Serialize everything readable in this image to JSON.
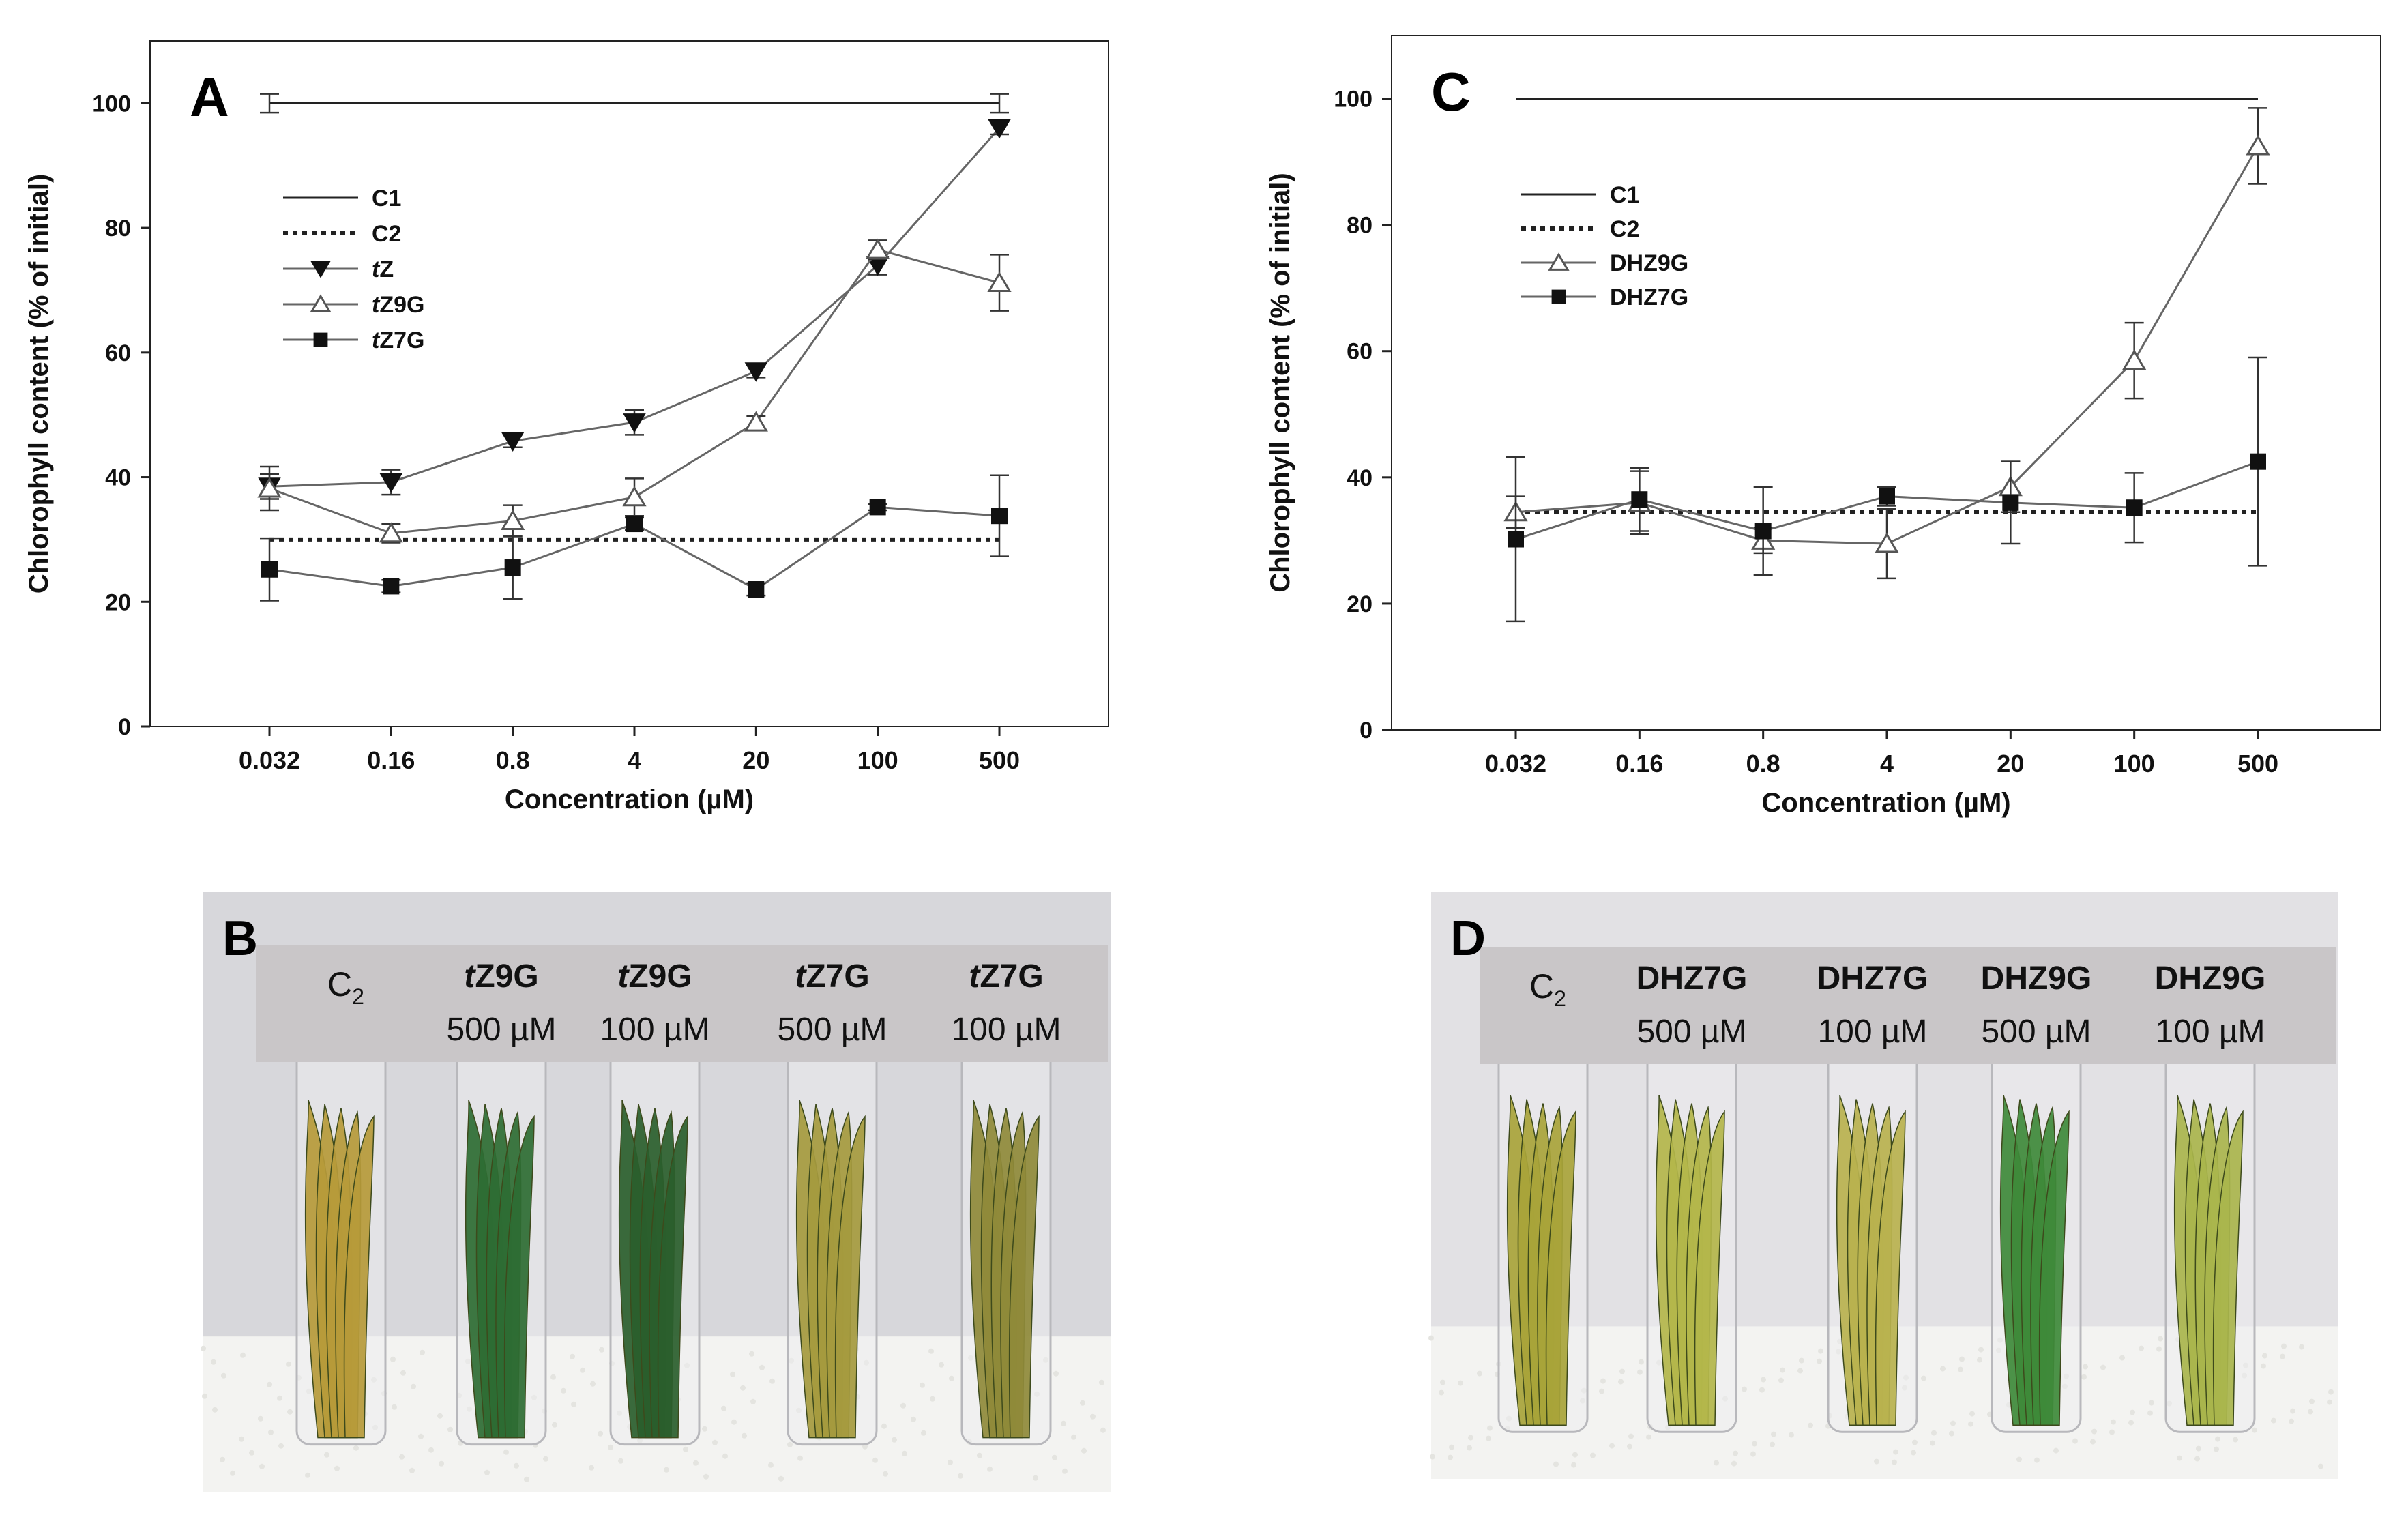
{
  "chart_data": [
    {
      "panel": "A",
      "type": "line",
      "xlabel": "Concentration (µM)",
      "ylabel": "Chlorophyll content (% of initial)",
      "categories": [
        "0.032",
        "0.16",
        "0.8",
        "4",
        "20",
        "100",
        "500"
      ],
      "ylim": [
        0,
        110
      ],
      "yticks": [
        0,
        20,
        40,
        60,
        80,
        100
      ],
      "legend_position": "upper-left",
      "series": [
        {
          "name": "C1",
          "style": "solid-line",
          "values": [
            100,
            null,
            null,
            null,
            null,
            null,
            100
          ],
          "errors": [
            1.5,
            null,
            null,
            null,
            null,
            null,
            1.5
          ]
        },
        {
          "name": "C2",
          "style": "dotted-line",
          "values": [
            30,
            null,
            null,
            null,
            null,
            null,
            30
          ],
          "errors": [
            null,
            null,
            null,
            null,
            null,
            null,
            null
          ]
        },
        {
          "name": "tZ",
          "italic_prefix": "t",
          "rest": "Z",
          "marker": "filled-triangle-down",
          "values": [
            38.5,
            39.2,
            45.8,
            48.8,
            57,
            74,
            96
          ],
          "errors": [
            2,
            2,
            1,
            2,
            1,
            1.5,
            1
          ]
        },
        {
          "name": "tZ9G",
          "italic_prefix": "t",
          "rest": "Z9G",
          "marker": "open-triangle-up",
          "values": [
            38.2,
            31,
            33,
            36.8,
            48.8,
            76.5,
            71.2
          ],
          "errors": [
            3.5,
            1.5,
            2.5,
            3,
            1,
            1.5,
            4.5
          ]
        },
        {
          "name": "tZ7G",
          "italic_prefix": "t",
          "rest": "Z7G",
          "marker": "filled-square",
          "values": [
            25.2,
            22.5,
            25.5,
            32.5,
            22,
            35.2,
            33.8
          ],
          "errors": [
            5,
            1,
            5,
            1,
            1,
            0.5,
            6.5
          ]
        }
      ]
    },
    {
      "panel": "C",
      "type": "line",
      "xlabel": "Concentration (µM)",
      "ylabel": "Chlorophyll content (% of initial)",
      "categories": [
        "0.032",
        "0.16",
        "0.8",
        "4",
        "20",
        "100",
        "500"
      ],
      "ylim": [
        0,
        110
      ],
      "yticks": [
        0,
        20,
        40,
        60,
        80,
        100
      ],
      "legend_position": "upper-left",
      "series": [
        {
          "name": "C1",
          "style": "solid-line",
          "values": [
            100,
            null,
            null,
            null,
            null,
            null,
            100
          ],
          "errors": [
            null,
            null,
            null,
            null,
            null,
            null,
            null
          ]
        },
        {
          "name": "C2",
          "style": "dotted-line",
          "values": [
            34.5,
            null,
            null,
            null,
            null,
            null,
            34.5
          ],
          "errors": [
            null,
            null,
            null,
            null,
            null,
            null,
            null
          ]
        },
        {
          "name": "DHZ9G",
          "italic_prefix": "",
          "rest": "DHZ9G",
          "marker": "open-triangle-up",
          "values": [
            34.5,
            36,
            30,
            29.5,
            38.5,
            58.5,
            92.5
          ],
          "errors": [
            2.5,
            5,
            2,
            5.5,
            4,
            6,
            6
          ]
        },
        {
          "name": "DHZ7G",
          "italic_prefix": "",
          "rest": "DHZ7G",
          "marker": "filled-square",
          "values": [
            30.2,
            36.5,
            31.5,
            37,
            36,
            35.2,
            42.5
          ],
          "errors": [
            13,
            5,
            7,
            1.5,
            6.5,
            5.5,
            16.5
          ]
        }
      ]
    }
  ],
  "panel_B": {
    "letter": "B",
    "tubes": [
      {
        "compound": "C",
        "compound_sub": "2",
        "italic": "",
        "conc": ""
      },
      {
        "compound": "Z9G",
        "italic": "t",
        "conc": "500 µM"
      },
      {
        "compound": "Z9G",
        "italic": "t",
        "conc": "100 µM"
      },
      {
        "compound": "Z7G",
        "italic": "t",
        "conc": "500 µM"
      },
      {
        "compound": "Z7G",
        "italic": "t",
        "conc": "100 µM"
      }
    ],
    "leaf_colors": [
      "#b69a3a",
      "#2e6d33",
      "#2a5e2c",
      "#a59a3e",
      "#8f8a3a"
    ]
  },
  "panel_D": {
    "letter": "D",
    "tubes": [
      {
        "compound": "C",
        "compound_sub": "2",
        "conc": ""
      },
      {
        "compound": "DHZ7G",
        "conc": "500 µM"
      },
      {
        "compound": "DHZ7G",
        "conc": "100 µM"
      },
      {
        "compound": "DHZ9G",
        "conc": "500 µM"
      },
      {
        "compound": "DHZ9G",
        "conc": "100 µM"
      }
    ],
    "leaf_colors": [
      "#a8a43a",
      "#b3b64a",
      "#b9b24e",
      "#3e8a3a",
      "#a9b54c"
    ]
  },
  "colors": {
    "axis": "#222222",
    "line": "#666666",
    "marker": "#111111",
    "photo_label_bg": "#c9c6c8",
    "photo_bg_B": "#d7d7db",
    "photo_bg_D": "#e2e1e4",
    "foam": "#f3f3f1"
  }
}
